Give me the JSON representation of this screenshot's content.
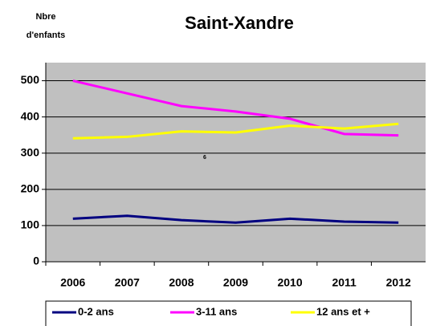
{
  "chart_data": {
    "type": "line",
    "title": "Saint-Xandre",
    "y_label": [
      "Nbre",
      "d'enfants"
    ],
    "annotation": "6",
    "categories": [
      "2006",
      "2007",
      "2008",
      "2009",
      "2010",
      "2011",
      "2012"
    ],
    "series": [
      {
        "name": "0-2 ans",
        "color": "#000080",
        "values": [
          119,
          127,
          115,
          108,
          119,
          111,
          108
        ]
      },
      {
        "name": "3-11 ans",
        "color": "#ff00ff",
        "values": [
          500,
          465,
          430,
          415,
          395,
          353,
          349
        ]
      },
      {
        "name": "12 ans et +",
        "color": "#ffff00",
        "values": [
          341,
          345,
          360,
          357,
          376,
          368,
          381
        ]
      }
    ],
    "ylim": [
      0,
      550
    ],
    "yticks": [
      0,
      100,
      200,
      300,
      400,
      500
    ],
    "grid": true,
    "legend": "bottom"
  }
}
